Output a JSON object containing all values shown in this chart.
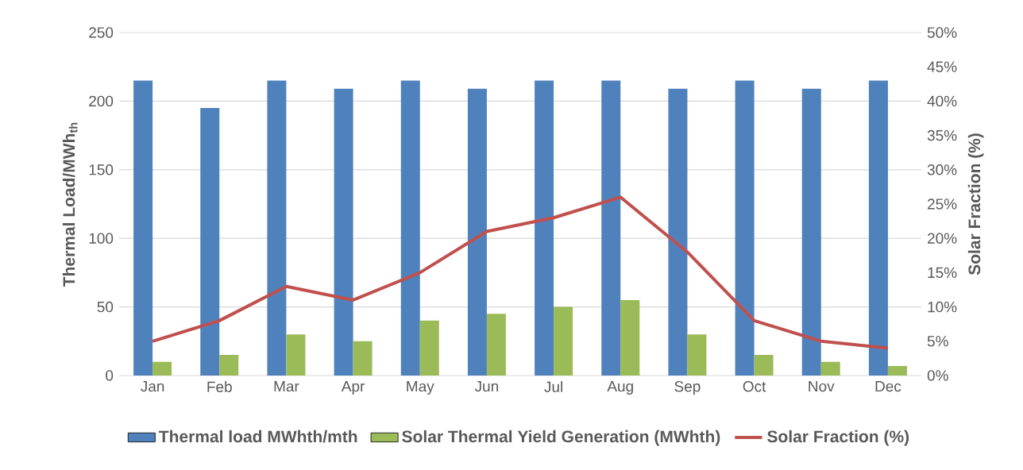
{
  "chart_data": {
    "type": "bar",
    "categories": [
      "Jan",
      "Feb",
      "Mar",
      "Apr",
      "May",
      "Jun",
      "Jul",
      "Aug",
      "Sep",
      "Oct",
      "Nov",
      "Dec"
    ],
    "series": [
      {
        "name": "Thermal load MWhth/mth",
        "color": "#4f81bd",
        "values": [
          215,
          195,
          215,
          209,
          215,
          209,
          215,
          215,
          209,
          215,
          209,
          215
        ]
      },
      {
        "name": "Solar Thermal Yield Generation (MWhth)",
        "color": "#9bbb59",
        "values": [
          10,
          15,
          30,
          25,
          40,
          45,
          50,
          55,
          30,
          15,
          10,
          7
        ]
      },
      {
        "name": "Solar Fraction (%)",
        "color": "#c0504d",
        "type": "line",
        "axis": "y2",
        "values": [
          5,
          8,
          13,
          11,
          15,
          21,
          23,
          26,
          18,
          8,
          5,
          4
        ]
      }
    ],
    "ylabel": "Thermal Load/MWh$_{th}$",
    "y2label": "Solar Fraction (%)",
    "ylim": [
      0,
      250
    ],
    "yticks": [
      0,
      50,
      100,
      150,
      200,
      250
    ],
    "y2lim": [
      0,
      50
    ],
    "y2ticks": [
      {
        "value": 0,
        "label": "0%"
      },
      {
        "value": 5,
        "label": "5%"
      },
      {
        "value": 10,
        "label": "10%"
      },
      {
        "value": 15,
        "label": "15%"
      },
      {
        "value": 20,
        "label": "20%"
      },
      {
        "value": 25,
        "label": "25%"
      },
      {
        "value": 30,
        "label": "30%"
      },
      {
        "value": 35,
        "label": "35%"
      },
      {
        "value": 40,
        "label": "40%"
      },
      {
        "value": 45,
        "label": "45%"
      },
      {
        "value": 50,
        "label": "50%"
      }
    ],
    "grid": "y",
    "legend": "bottom",
    "line_style": "solid",
    "marker": "none"
  }
}
